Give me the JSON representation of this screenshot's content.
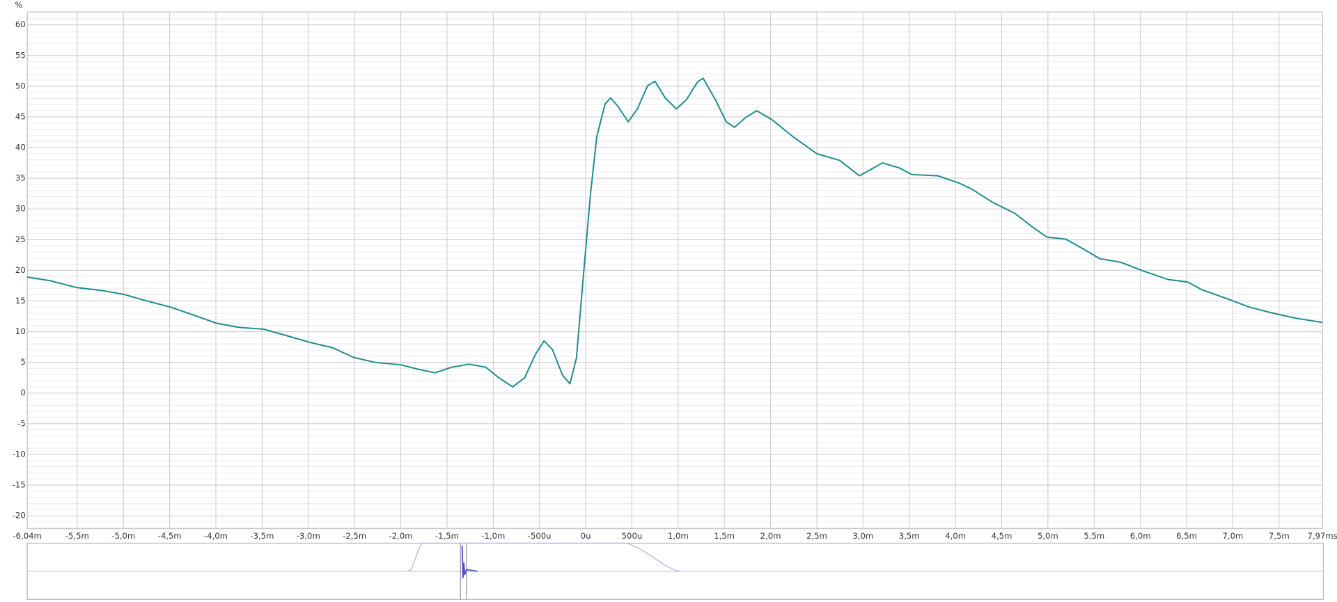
{
  "chart_data": {
    "type": "line",
    "y_label": "%",
    "x": [
      -6.04,
      -5.79,
      -5.51,
      -5.23,
      -5.0,
      -4.77,
      -4.49,
      -4.22,
      -4.0,
      -3.75,
      -3.48,
      -3.2,
      -2.97,
      -2.74,
      -2.51,
      -2.28,
      -2.0,
      -1.82,
      -1.63,
      -1.45,
      -1.26,
      -1.08,
      -0.94,
      -0.79,
      -0.66,
      -0.54,
      -0.45,
      -0.36,
      -0.25,
      -0.17,
      -0.1,
      -0.03,
      0.05,
      0.12,
      0.21,
      0.27,
      0.35,
      0.46,
      0.56,
      0.67,
      0.75,
      0.86,
      0.98,
      1.09,
      1.21,
      1.27,
      1.41,
      1.52,
      1.61,
      1.73,
      1.85,
      2.01,
      2.24,
      2.5,
      2.75,
      2.96,
      3.07,
      3.21,
      3.39,
      3.53,
      3.81,
      4.04,
      4.18,
      4.41,
      4.64,
      4.82,
      4.99,
      5.19,
      5.38,
      5.56,
      5.79,
      6.03,
      6.3,
      6.51,
      6.67,
      6.95,
      7.18,
      7.41,
      7.68,
      7.97
    ],
    "values": [
      18.9,
      18.3,
      17.2,
      16.7,
      16.1,
      15.1,
      14.0,
      12.6,
      11.4,
      10.7,
      10.4,
      9.2,
      8.2,
      7.4,
      5.8,
      5.0,
      4.6,
      3.9,
      3.3,
      4.2,
      4.7,
      4.2,
      2.5,
      1.0,
      2.5,
      6.4,
      8.5,
      7.1,
      2.9,
      1.5,
      5.7,
      18.2,
      32.1,
      41.8,
      47.1,
      48.1,
      46.7,
      44.2,
      46.3,
      50.1,
      50.8,
      48.1,
      46.3,
      47.8,
      50.7,
      51.3,
      47.6,
      44.2,
      43.3,
      44.9,
      46.0,
      44.6,
      41.8,
      39.0,
      37.9,
      35.4,
      36.3,
      37.5,
      36.7,
      35.6,
      35.4,
      34.2,
      33.2,
      31.0,
      29.3,
      27.2,
      25.4,
      25.1,
      23.5,
      21.9,
      21.3,
      19.9,
      18.5,
      18.1,
      16.8,
      15.3,
      14.0,
      13.1,
      12.2,
      11.5
    ],
    "color": "#1b8a8c",
    "xlim": [
      -6.04,
      7.97
    ],
    "xticks": [
      {
        "value": -6.04,
        "label": "-6,04m"
      },
      {
        "value": -5.5,
        "label": "-5,5m"
      },
      {
        "value": -5.0,
        "label": "-5,0m"
      },
      {
        "value": -4.5,
        "label": "-4,5m"
      },
      {
        "value": -4.0,
        "label": "-4,0m"
      },
      {
        "value": -3.5,
        "label": "-3,5m"
      },
      {
        "value": -3.0,
        "label": "-3,0m"
      },
      {
        "value": -2.5,
        "label": "-2,5m"
      },
      {
        "value": -2.0,
        "label": "-2,0m"
      },
      {
        "value": -1.5,
        "label": "-1,5m"
      },
      {
        "value": -1.0,
        "label": "-1,0m"
      },
      {
        "value": -0.5,
        "label": "-500u"
      },
      {
        "value": 0,
        "label": "0u"
      },
      {
        "value": 0.5,
        "label": "500u"
      },
      {
        "value": 1.0,
        "label": "1,0m"
      },
      {
        "value": 1.5,
        "label": "1,5m"
      },
      {
        "value": 2.0,
        "label": "2,0m"
      },
      {
        "value": 2.5,
        "label": "2,5m"
      },
      {
        "value": 3.0,
        "label": "3,0m"
      },
      {
        "value": 3.5,
        "label": "3,5m"
      },
      {
        "value": 4.0,
        "label": "4,0m"
      },
      {
        "value": 4.5,
        "label": "4,5m"
      },
      {
        "value": 5.0,
        "label": "5,0m"
      },
      {
        "value": 5.5,
        "label": "5,5m"
      },
      {
        "value": 6.0,
        "label": "6,0m"
      },
      {
        "value": 6.5,
        "label": "6,5m"
      },
      {
        "value": 7.0,
        "label": "7,0m"
      },
      {
        "value": 7.5,
        "label": "7,5m"
      },
      {
        "value": 7.97,
        "label": "7,97ms"
      }
    ],
    "ylim": [
      -22.1,
      62.1
    ],
    "yticks": [
      -20,
      -15,
      -10,
      -5,
      0,
      5,
      10,
      15,
      20,
      25,
      30,
      35,
      40,
      45,
      50,
      55,
      60
    ],
    "grid": true,
    "minor_grid": true
  }
}
